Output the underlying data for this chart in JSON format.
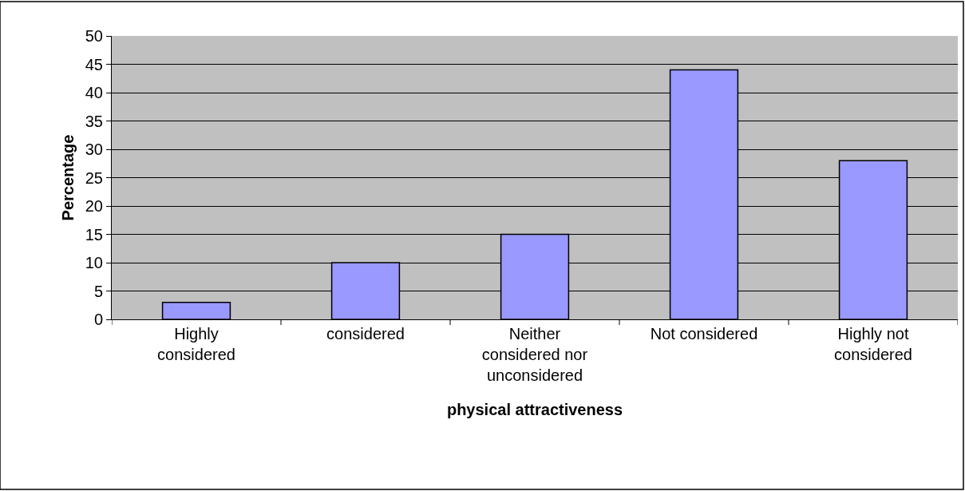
{
  "chart_data": {
    "type": "bar",
    "xlabel": "physical attractiveness",
    "ylabel": "Percentage",
    "categories": [
      "Highly considered",
      "considered",
      "Neither considered nor unconsidered",
      "Not considered",
      "Highly not considered"
    ],
    "values": [
      3,
      10,
      15,
      44,
      28
    ],
    "color": "#9999ff",
    "ylim": [
      0,
      50
    ],
    "yticks": [
      0,
      5,
      10,
      15,
      20,
      25,
      30,
      35,
      40,
      45,
      50
    ],
    "grid": "y"
  }
}
